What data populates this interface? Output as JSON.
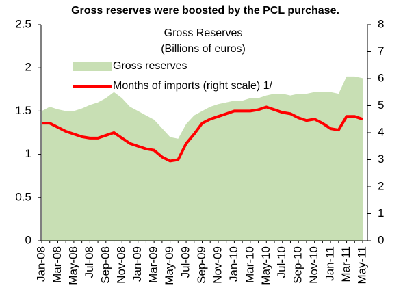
{
  "chart_data": {
    "type": "area-line",
    "title": "Gross reserves were boosted by the PCL purchase.",
    "subtitle": "Gross Reserves",
    "subtitle2": "(Billions of euros)",
    "categories": [
      "Jan-08",
      null,
      "Mar-08",
      null,
      "May-08",
      null,
      "Jul-08",
      null,
      "Sep-08",
      null,
      "Nov-08",
      null,
      "Jan-09",
      null,
      "Mar-09",
      null,
      "May-09",
      null,
      "Jul-09",
      null,
      "Sep-09",
      null,
      "Nov-09",
      null,
      "Jan-10",
      null,
      "Mar-10",
      null,
      "May-10",
      null,
      "Jul-10",
      null,
      "Sep-10",
      null,
      "Nov-10",
      null,
      "Jan-11",
      null,
      "Mar-11",
      null,
      "May-11"
    ],
    "series": [
      {
        "name": "Gross reserves",
        "color": "#c8dfb4",
        "kind": "area",
        "axis": "y",
        "values": [
          1.5,
          1.55,
          1.52,
          1.5,
          1.5,
          1.53,
          1.57,
          1.6,
          1.65,
          1.72,
          1.65,
          1.55,
          1.5,
          1.45,
          1.4,
          1.3,
          1.2,
          1.18,
          1.35,
          1.45,
          1.5,
          1.55,
          1.58,
          1.6,
          1.62,
          1.62,
          1.65,
          1.65,
          1.68,
          1.7,
          1.7,
          1.68,
          1.7,
          1.7,
          1.72,
          1.72,
          1.72,
          1.7,
          1.9,
          1.9,
          1.88
        ]
      },
      {
        "name": "Months of imports (right scale) 1/",
        "color": "#ff0000",
        "kind": "line",
        "axis": "y2",
        "values": [
          4.35,
          4.35,
          4.2,
          4.05,
          3.95,
          3.85,
          3.8,
          3.8,
          3.9,
          4.0,
          3.8,
          3.6,
          3.5,
          3.4,
          3.35,
          3.1,
          2.95,
          3.0,
          3.6,
          3.95,
          4.35,
          4.5,
          4.6,
          4.7,
          4.8,
          4.8,
          4.8,
          4.85,
          4.95,
          4.85,
          4.75,
          4.7,
          4.55,
          4.45,
          4.5,
          4.35,
          4.15,
          4.1,
          4.6,
          4.6,
          4.5
        ]
      }
    ],
    "ylim": [
      0,
      2.5
    ],
    "yticks": [
      0,
      0.5,
      1,
      1.5,
      2,
      2.5
    ],
    "y2lim": [
      0,
      8
    ],
    "y2ticks": [
      0,
      1,
      2,
      3,
      4,
      5,
      6,
      7,
      8
    ]
  }
}
